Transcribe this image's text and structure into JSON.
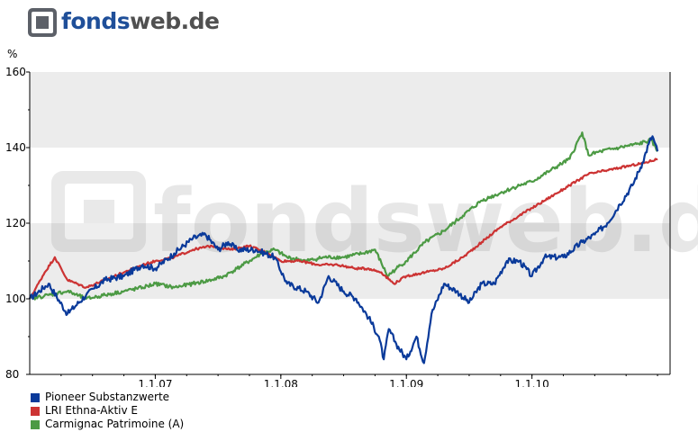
{
  "logo": {
    "part1": "fonds",
    "part2": "web.de"
  },
  "watermark": "fondsweb.de",
  "chart_data": {
    "type": "line",
    "ylabel": "%",
    "ylim": [
      80,
      160
    ],
    "yticks": [
      80,
      100,
      120,
      140,
      160
    ],
    "xlim": [
      2006.0,
      2011.1
    ],
    "xticks": [
      {
        "value": 2007.0,
        "label": "1.1.07"
      },
      {
        "value": 2008.0,
        "label": "1.1.08"
      },
      {
        "value": 2009.0,
        "label": "1.1.09"
      },
      {
        "value": 2010.0,
        "label": "1.1.10"
      }
    ],
    "grid": "alternating horizontal bands",
    "legend_position": "bottom-left",
    "series": [
      {
        "name": "Pioneer Substanzwerte",
        "color": "#0a3a9a",
        "x": [
          2006.0,
          2006.15,
          2006.3,
          2006.45,
          2006.6,
          2006.75,
          2006.9,
          2007.0,
          2007.15,
          2007.3,
          2007.4,
          2007.5,
          2007.58,
          2007.65,
          2007.8,
          2007.95,
          2008.05,
          2008.2,
          2008.3,
          2008.38,
          2008.5,
          2008.6,
          2008.7,
          2008.78,
          2008.82,
          2008.86,
          2008.92,
          2009.0,
          2009.08,
          2009.14,
          2009.2,
          2009.3,
          2009.4,
          2009.5,
          2009.6,
          2009.7,
          2009.8,
          2009.9,
          2010.0,
          2010.1,
          2010.25,
          2010.4,
          2010.5,
          2010.6,
          2010.7,
          2010.8,
          2010.88,
          2010.93,
          2010.96,
          2011.0
        ],
        "y": [
          100,
          104,
          96,
          101,
          105,
          106,
          109,
          108,
          112,
          116,
          117,
          113,
          115,
          113,
          113,
          111,
          104,
          102,
          99,
          106,
          102,
          100,
          95,
          90,
          84,
          92,
          88,
          84,
          90,
          83,
          96,
          104,
          102,
          99,
          104,
          104,
          110,
          110,
          106,
          111,
          111,
          115,
          117,
          120,
          125,
          130,
          136,
          141,
          143,
          139
        ]
      },
      {
        "name": "LRI Ethna-Aktiv E",
        "color": "#cc3333",
        "x": [
          2006.0,
          2006.12,
          2006.2,
          2006.3,
          2006.45,
          2006.6,
          2006.75,
          2006.9,
          2007.0,
          2007.15,
          2007.3,
          2007.45,
          2007.6,
          2007.75,
          2007.9,
          2008.0,
          2008.15,
          2008.3,
          2008.45,
          2008.6,
          2008.7,
          2008.8,
          2008.9,
          2009.0,
          2009.15,
          2009.3,
          2009.45,
          2009.6,
          2009.75,
          2009.9,
          2010.0,
          2010.15,
          2010.3,
          2010.45,
          2010.6,
          2010.75,
          2010.9,
          2011.0
        ],
        "y": [
          100,
          107,
          111,
          105,
          103,
          105,
          107,
          109,
          110,
          111,
          113,
          114,
          113,
          114,
          112,
          110,
          110,
          109,
          109,
          108,
          108,
          107,
          104,
          106,
          107,
          108,
          111,
          115,
          119,
          122,
          124,
          127,
          130,
          133,
          134,
          135,
          136,
          137
        ]
      },
      {
        "name": "Carmignac Patrimoine (A)",
        "color": "#4c9a44",
        "x": [
          2006.0,
          2006.15,
          2006.3,
          2006.45,
          2006.6,
          2006.75,
          2006.9,
          2007.0,
          2007.15,
          2007.3,
          2007.45,
          2007.55,
          2007.65,
          2007.75,
          2007.85,
          2007.95,
          2008.05,
          2008.2,
          2008.35,
          2008.5,
          2008.65,
          2008.75,
          2008.85,
          2008.92,
          2009.0,
          2009.15,
          2009.3,
          2009.45,
          2009.6,
          2009.75,
          2009.9,
          2010.0,
          2010.15,
          2010.3,
          2010.4,
          2010.45,
          2010.55,
          2010.7,
          2010.85,
          2010.95,
          2011.0
        ],
        "y": [
          100,
          101,
          102,
          100,
          101,
          102,
          103,
          104,
          103,
          104,
          105,
          106,
          108,
          110,
          112,
          113,
          111,
          110,
          111,
          111,
          112,
          113,
          106,
          108,
          110,
          115,
          118,
          122,
          126,
          128,
          130,
          131,
          134,
          137,
          144,
          138,
          139,
          140,
          141,
          142,
          139
        ]
      }
    ]
  }
}
